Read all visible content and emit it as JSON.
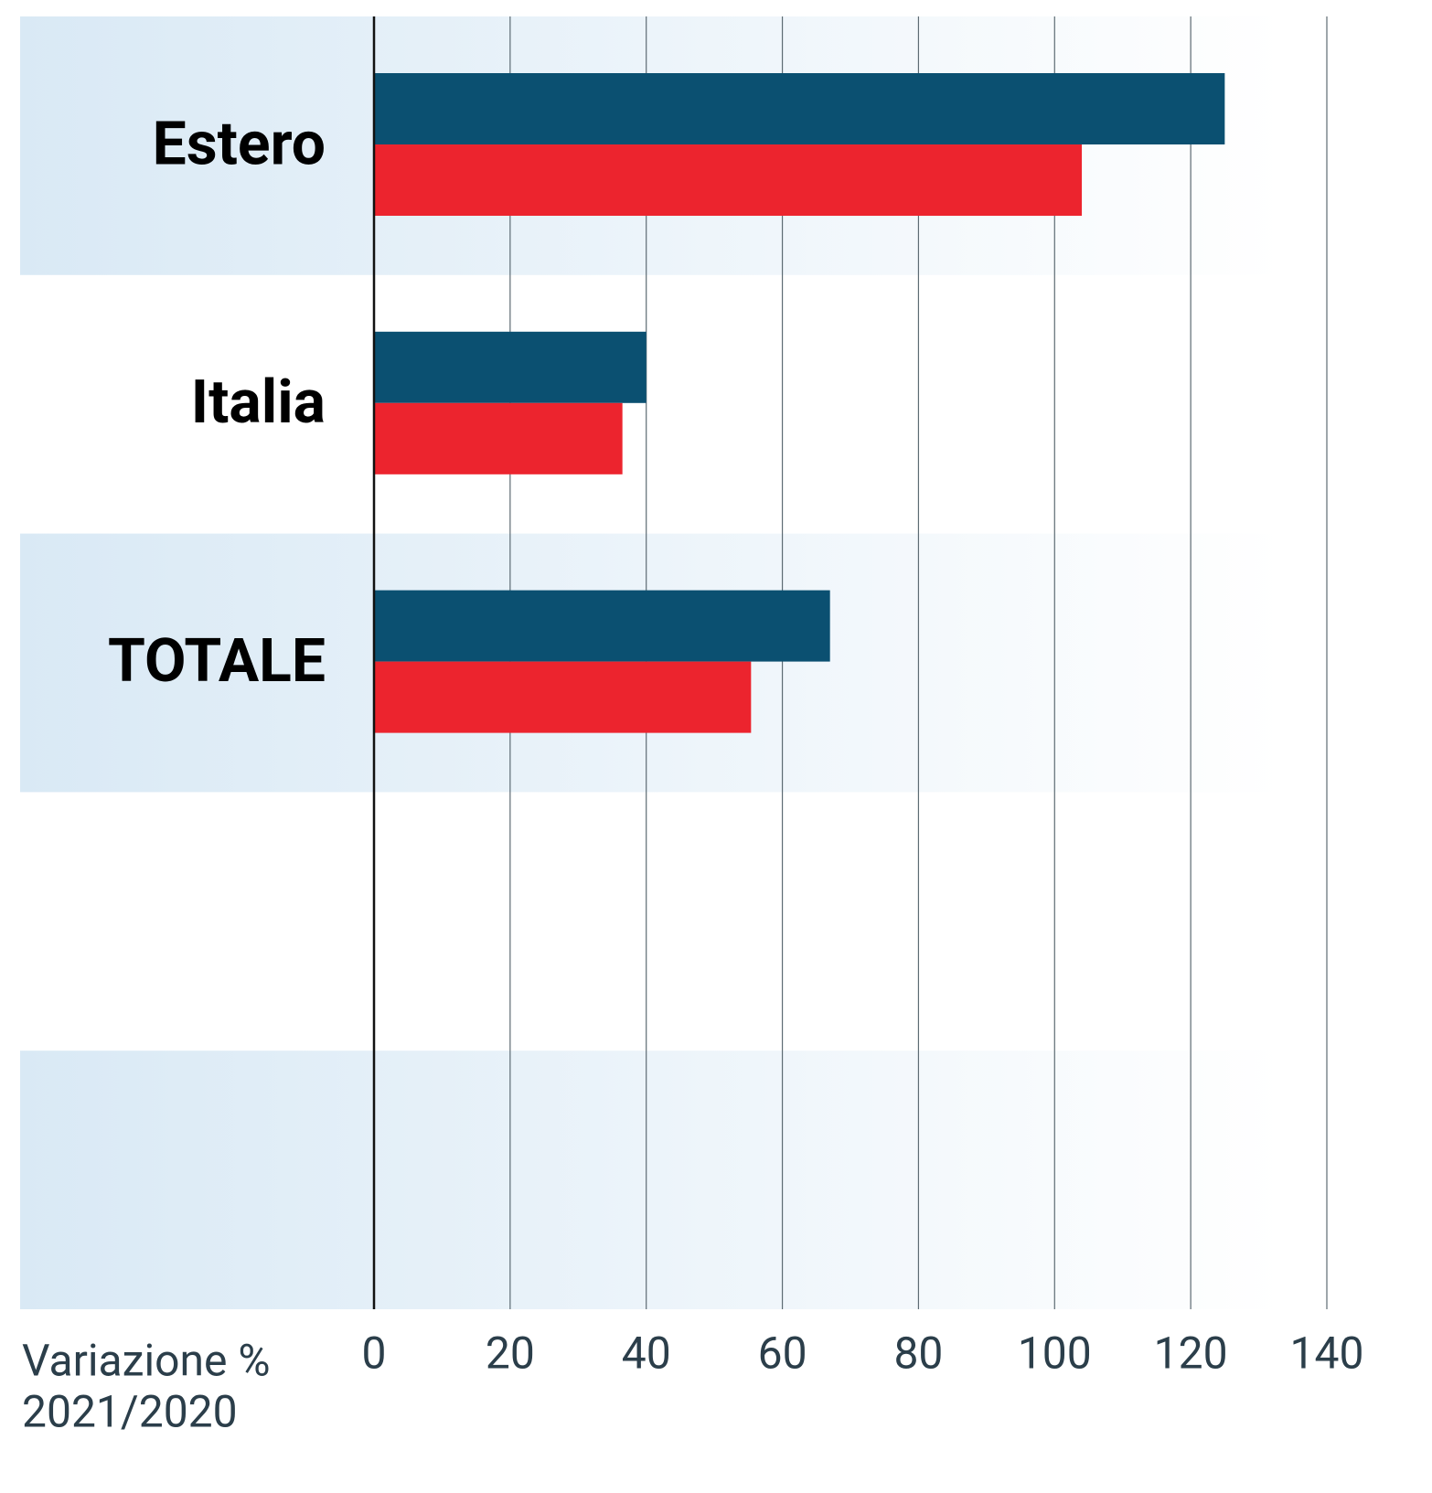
{
  "chart_data": {
    "type": "hbar",
    "categories": [
      "Estero",
      "Italia",
      "TOTALE",
      null,
      null
    ],
    "series": [
      {
        "color": "#0b5071",
        "values": [
          125,
          40,
          67,
          null,
          null
        ]
      },
      {
        "color": "#ec242e",
        "values": [
          104,
          36.5,
          55.4,
          null,
          null
        ]
      }
    ],
    "xlim": [
      0,
      140
    ],
    "xticks": [
      0,
      20,
      40,
      60,
      80,
      100,
      120,
      140
    ],
    "xlabel": [
      "Variazione %",
      "2021/2020"
    ],
    "grid": true,
    "band_color": "#d9e9f5"
  }
}
